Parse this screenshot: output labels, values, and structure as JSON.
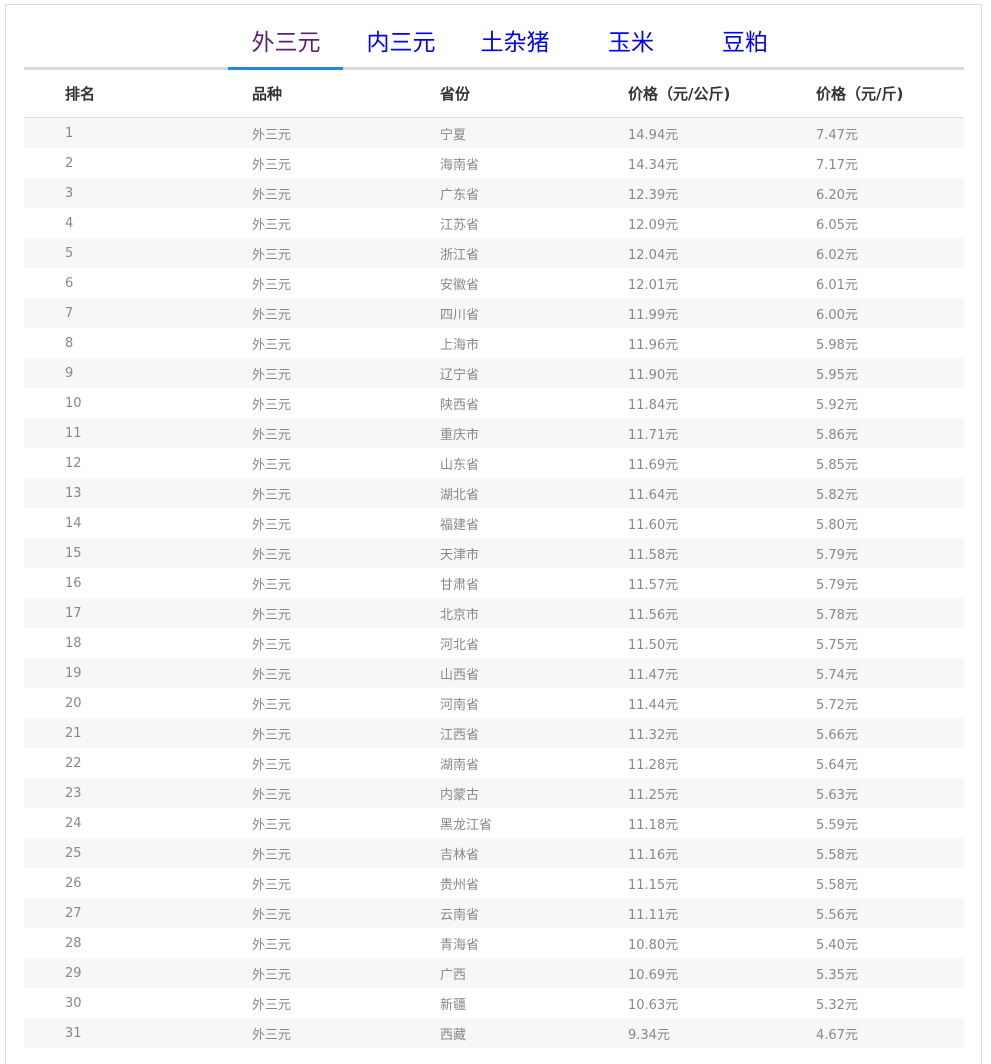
{
  "tabs": [
    {
      "label": "外三元",
      "active": true
    },
    {
      "label": "内三元",
      "active": false
    },
    {
      "label": "土杂猪",
      "active": false
    },
    {
      "label": "玉米",
      "active": false
    },
    {
      "label": "豆粕",
      "active": false
    }
  ],
  "colors": {
    "active_tab": "#5b1f78",
    "tab_link": "#0000ee",
    "tab_indicator": "#1e88e5",
    "row_stripe": "#f7f7f7"
  },
  "table": {
    "headers": [
      "排名",
      "品种",
      "省份",
      "价格（元/公斤)",
      "价格（元/斤)"
    ],
    "rows": [
      [
        "1",
        "外三元",
        "宁夏",
        "14.94元",
        "7.47元"
      ],
      [
        "2",
        "外三元",
        "海南省",
        "14.34元",
        "7.17元"
      ],
      [
        "3",
        "外三元",
        "广东省",
        "12.39元",
        "6.20元"
      ],
      [
        "4",
        "外三元",
        "江苏省",
        "12.09元",
        "6.05元"
      ],
      [
        "5",
        "外三元",
        "浙江省",
        "12.04元",
        "6.02元"
      ],
      [
        "6",
        "外三元",
        "安徽省",
        "12.01元",
        "6.01元"
      ],
      [
        "7",
        "外三元",
        "四川省",
        "11.99元",
        "6.00元"
      ],
      [
        "8",
        "外三元",
        "上海市",
        "11.96元",
        "5.98元"
      ],
      [
        "9",
        "外三元",
        "辽宁省",
        "11.90元",
        "5.95元"
      ],
      [
        "10",
        "外三元",
        "陕西省",
        "11.84元",
        "5.92元"
      ],
      [
        "11",
        "外三元",
        "重庆市",
        "11.71元",
        "5.86元"
      ],
      [
        "12",
        "外三元",
        "山东省",
        "11.69元",
        "5.85元"
      ],
      [
        "13",
        "外三元",
        "湖北省",
        "11.64元",
        "5.82元"
      ],
      [
        "14",
        "外三元",
        "福建省",
        "11.60元",
        "5.80元"
      ],
      [
        "15",
        "外三元",
        "天津市",
        "11.58元",
        "5.79元"
      ],
      [
        "16",
        "外三元",
        "甘肃省",
        "11.57元",
        "5.79元"
      ],
      [
        "17",
        "外三元",
        "北京市",
        "11.56元",
        "5.78元"
      ],
      [
        "18",
        "外三元",
        "河北省",
        "11.50元",
        "5.75元"
      ],
      [
        "19",
        "外三元",
        "山西省",
        "11.47元",
        "5.74元"
      ],
      [
        "20",
        "外三元",
        "河南省",
        "11.44元",
        "5.72元"
      ],
      [
        "21",
        "外三元",
        "江西省",
        "11.32元",
        "5.66元"
      ],
      [
        "22",
        "外三元",
        "湖南省",
        "11.28元",
        "5.64元"
      ],
      [
        "23",
        "外三元",
        "内蒙古",
        "11.25元",
        "5.63元"
      ],
      [
        "24",
        "外三元",
        "黑龙江省",
        "11.18元",
        "5.59元"
      ],
      [
        "25",
        "外三元",
        "吉林省",
        "11.16元",
        "5.58元"
      ],
      [
        "26",
        "外三元",
        "贵州省",
        "11.15元",
        "5.58元"
      ],
      [
        "27",
        "外三元",
        "云南省",
        "11.11元",
        "5.56元"
      ],
      [
        "28",
        "外三元",
        "青海省",
        "10.80元",
        "5.40元"
      ],
      [
        "29",
        "外三元",
        "广西",
        "10.69元",
        "5.35元"
      ],
      [
        "30",
        "外三元",
        "新疆",
        "10.63元",
        "5.32元"
      ],
      [
        "31",
        "外三元",
        "西藏",
        "9.34元",
        "4.67元"
      ]
    ]
  }
}
